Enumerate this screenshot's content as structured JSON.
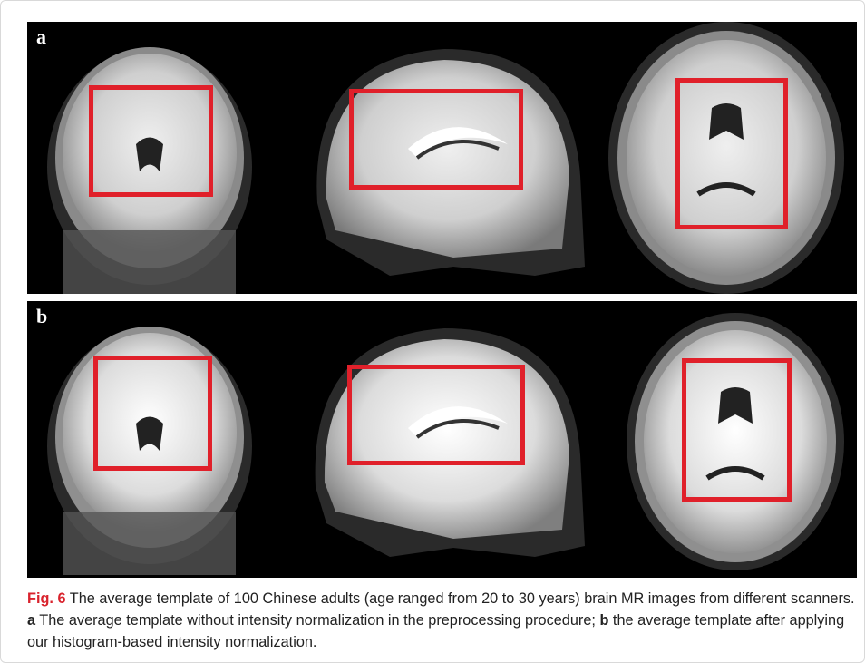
{
  "figure": {
    "panels": [
      {
        "label": "a",
        "views": [
          "coronal",
          "sagittal",
          "axial"
        ]
      },
      {
        "label": "b",
        "views": [
          "coronal",
          "sagittal",
          "axial"
        ]
      }
    ],
    "roi_color": "#e0202a",
    "background_color": "#000000"
  },
  "caption": {
    "label": "Fig. 6",
    "text_1": "The average template of 100 Chinese adults (age ranged from 20 to 30 years) brain MR images from different scanners.",
    "part_a": "a",
    "text_2": "The average template without intensity normalization in the preprocessing procedure;",
    "part_b": "b",
    "text_3": "the average template after applying our histogram-based intensity normalization."
  }
}
